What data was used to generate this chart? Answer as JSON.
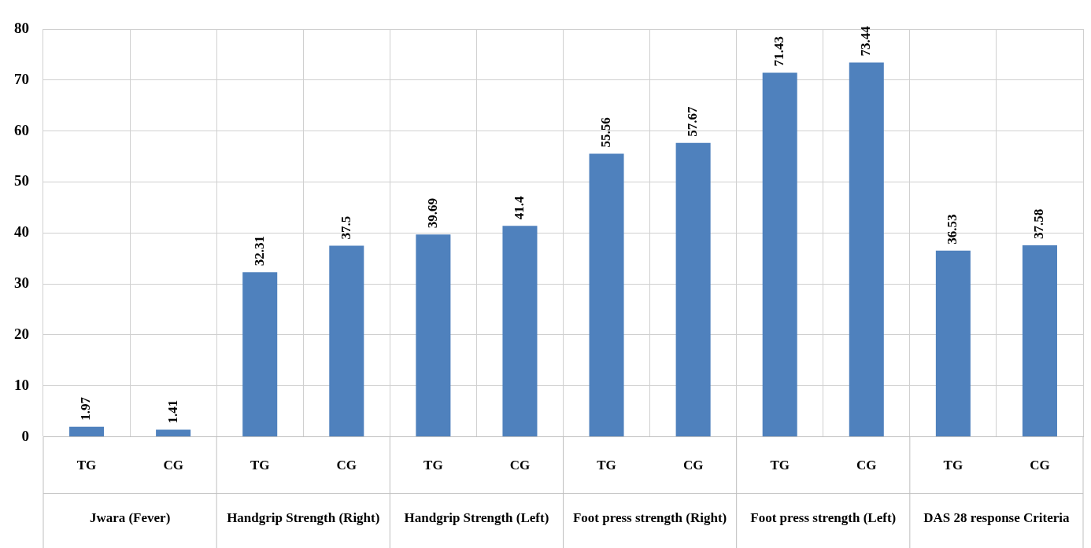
{
  "chart_data": {
    "type": "bar",
    "categories": [
      "TG",
      "CG",
      "TG",
      "CG",
      "TG",
      "CG",
      "TG",
      "CG",
      "TG",
      "CG",
      "TG",
      "CG"
    ],
    "values": [
      1.97,
      1.41,
      32.31,
      37.5,
      39.69,
      41.4,
      55.56,
      57.67,
      71.43,
      73.44,
      36.53,
      37.58
    ],
    "color": "#4f81bd",
    "ylim": [
      0,
      80
    ],
    "yticks": [
      0,
      10,
      20,
      30,
      40,
      50,
      60,
      70,
      80
    ],
    "grid": true,
    "data_labels": true,
    "legend": false,
    "annotations": [
      "Jwara (Fever)",
      "Handgrip Strength (Right)",
      "Handgrip Strength (Left)",
      "Foot press strength (Right)",
      "Foot press strength (Left)",
      "DAS 28 response Criteria"
    ]
  }
}
